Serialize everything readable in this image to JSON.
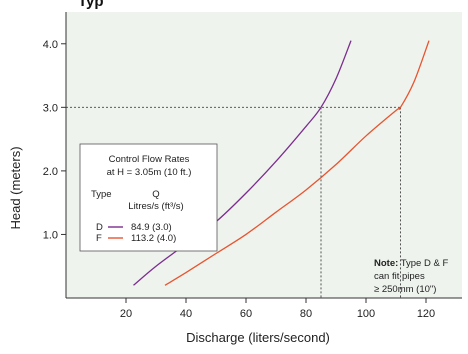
{
  "chart_data": {
    "type": "line",
    "title": "Typ",
    "xlabel": "Discharge (liters/second)",
    "ylabel": "Head (meters)",
    "xlim": [
      0,
      132
    ],
    "ylim": [
      0,
      4.5
    ],
    "x_ticks": [
      "20",
      "40",
      "60",
      "80",
      "100",
      "120"
    ],
    "x_tick_values": [
      20,
      40,
      60,
      80,
      100,
      120
    ],
    "y_ticks": [
      "1.0",
      "2.0",
      "3.0",
      "4.0"
    ],
    "y_tick_values": [
      1.0,
      2.0,
      3.0,
      4.0
    ],
    "grid": false,
    "reference_lines": {
      "head": 3.0,
      "head_label": "3.0",
      "discharge_D": 85,
      "discharge_F": 111.5
    },
    "series": [
      {
        "name": "D",
        "color": "#7b2d8e",
        "points": [
          [
            22.5,
            0.2
          ],
          [
            30,
            0.5
          ],
          [
            40,
            0.85
          ],
          [
            50,
            1.2
          ],
          [
            60,
            1.65
          ],
          [
            70,
            2.15
          ],
          [
            80,
            2.7
          ],
          [
            85,
            3.0
          ],
          [
            90,
            3.45
          ],
          [
            95,
            4.05
          ]
        ]
      },
      {
        "name": "F",
        "color": "#e8542f",
        "points": [
          [
            33,
            0.2
          ],
          [
            40,
            0.4
          ],
          [
            50,
            0.7
          ],
          [
            60,
            1.0
          ],
          [
            70,
            1.35
          ],
          [
            80,
            1.7
          ],
          [
            90,
            2.1
          ],
          [
            100,
            2.55
          ],
          [
            110,
            2.95
          ],
          [
            111.5,
            3.0
          ],
          [
            116,
            3.4
          ],
          [
            121,
            4.05
          ]
        ]
      }
    ],
    "legend": {
      "title_line1": "Control Flow Rates",
      "title_line2": "at H = 3.05m (10 ft.)",
      "col_type": "Type",
      "col_q_line1": "Q",
      "col_q_line2": "Litres/s (ft³/s)",
      "entries": [
        {
          "type": "D",
          "value": "84.9 (3.0)",
          "color": "#7b2d8e"
        },
        {
          "type": "F",
          "value": "113.2 (4.0)",
          "color": "#e8542f"
        }
      ]
    },
    "note": {
      "bold": "Note:",
      "line1": " Type D & F",
      "line2": "can fit pipes",
      "line3": "≥ 250mm (10\")"
    },
    "plot_background": "#eef3ee"
  }
}
